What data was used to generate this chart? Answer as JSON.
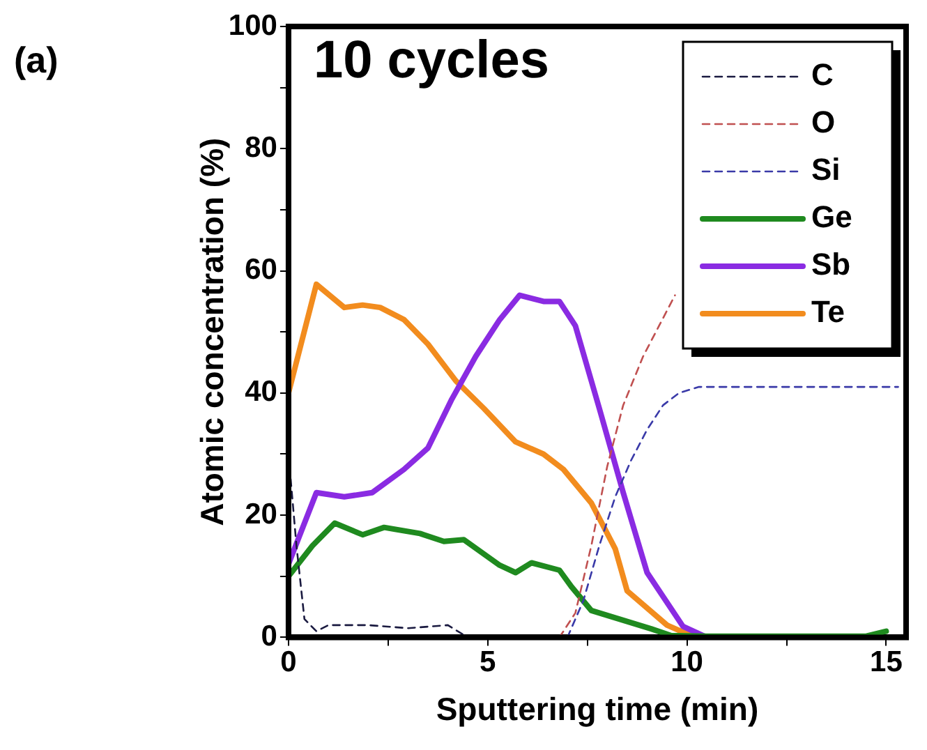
{
  "chart_data": {
    "type": "line",
    "xlabel": "Sputtering time (min)",
    "ylabel": "Atomic concentration (%)",
    "annotations": [
      "(a)",
      "10 cycles"
    ],
    "xlim": [
      0,
      15.5
    ],
    "xticks": [
      0,
      {
        "value": 2.5,
        "label": null
      },
      5,
      {
        "value": 7.5,
        "label": null
      },
      10,
      {
        "value": 12.5,
        "label": null
      },
      15
    ],
    "ylim": [
      0,
      100
    ],
    "yticks": [
      0,
      {
        "value": 10,
        "label": null
      },
      20,
      {
        "value": 30,
        "label": null
      },
      40,
      {
        "value": 50,
        "label": null
      },
      60,
      {
        "value": 70,
        "label": null
      },
      80,
      {
        "value": 90,
        "label": null
      },
      100
    ],
    "grid": false,
    "legend": "top right",
    "marker": "none",
    "series": [
      {
        "name": "C",
        "color": "#1a1a40",
        "line_style": "dashed",
        "x": [
          0,
          0.2,
          0.4,
          0.7,
          1.0,
          2.0,
          3.0,
          4.0,
          4.5,
          6.0
        ],
        "values": [
          30,
          15,
          3,
          1,
          2,
          2,
          1.5,
          2,
          0,
          0
        ]
      },
      {
        "name": "O",
        "color": "#c05050",
        "line_style": "dashed",
        "x": [
          6.8,
          7.2,
          7.6,
          8.0,
          8.4,
          8.9,
          9.3,
          9.7
        ],
        "values": [
          0,
          4,
          15,
          28,
          38,
          46,
          51,
          56
        ]
      },
      {
        "name": "Si",
        "color": "#3a3aa8",
        "line_style": "dashed",
        "x": [
          7.0,
          7.4,
          7.8,
          8.2,
          8.6,
          9.0,
          9.4,
          9.8,
          10.3,
          12.0,
          15.3
        ],
        "values": [
          0,
          6,
          15,
          23,
          29,
          34,
          38,
          40,
          41,
          41,
          41
        ]
      },
      {
        "name": "Ge",
        "color": "#1f8a1f",
        "line_style": "solid",
        "x": [
          0,
          0.6,
          1.16,
          1.86,
          2.4,
          3.3,
          3.9,
          4.4,
          5.3,
          5.7,
          6.1,
          6.8,
          7.1,
          7.6,
          8.3,
          9.1,
          9.6,
          10.5,
          12.0,
          14.5,
          15.0
        ],
        "values": [
          10,
          15,
          18.7,
          16.8,
          18,
          17,
          15.7,
          16,
          11.8,
          10.6,
          12.2,
          11,
          8.3,
          4.4,
          3,
          1.4,
          0.3,
          0.2,
          0.2,
          0.2,
          1
        ]
      },
      {
        "name": "Sb",
        "color": "#8a2be2",
        "line_style": "solid",
        "x": [
          0,
          0.7,
          1.4,
          2.1,
          2.9,
          3.5,
          4.1,
          4.7,
          5.3,
          5.8,
          6.4,
          6.8,
          7.2,
          7.8,
          8.4,
          9.0,
          9.9,
          10.5
        ],
        "values": [
          12,
          23.7,
          23,
          23.7,
          27.5,
          31,
          39,
          46,
          52,
          56,
          55,
          55,
          51,
          37.5,
          23.7,
          10.6,
          1.8,
          0
        ]
      },
      {
        "name": "Te",
        "color": "#f28c1e",
        "line_style": "solid",
        "x": [
          0,
          0.7,
          1.4,
          1.86,
          2.3,
          2.9,
          3.5,
          4.2,
          4.9,
          5.7,
          6.4,
          6.9,
          7.6,
          8.2,
          8.5,
          9.5,
          10.2,
          14.0
        ],
        "values": [
          40,
          57.8,
          54,
          54.4,
          54,
          52,
          48,
          42,
          37.5,
          32,
          30,
          27.5,
          22,
          14.5,
          7.6,
          2,
          0,
          0
        ]
      }
    ]
  }
}
